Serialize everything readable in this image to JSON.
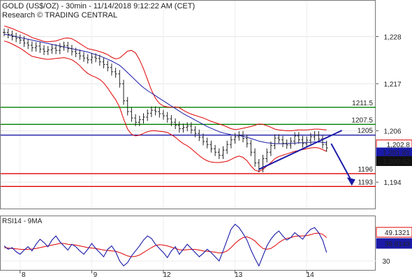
{
  "header": {
    "line1": "GOLD (US$/OZ) - 30min - 11/14/2018 9:12:22 AM (CET)",
    "line2": "Research © TRADING CENTRAL"
  },
  "colors": {
    "price": "#222222",
    "bollinger": "#e00000",
    "ma": "#1a1aa8",
    "support": "#e00000",
    "resistance": "#008000",
    "pivot": "#1a1aa8",
    "arrow": "#1a1aa8"
  },
  "chart_data": [
    {
      "type": "line",
      "title": "",
      "x_ticks": [
        "8",
        "9",
        "12",
        "13",
        "14"
      ],
      "y_ticks": [
        "1,228",
        "1,217",
        "1,206",
        "1,194"
      ],
      "ylim": [
        1188,
        1232
      ],
      "levels": [
        {
          "value": 1211.5,
          "label": "1211.5",
          "kind": "resistance"
        },
        {
          "value": 1207.5,
          "label": "1207.5",
          "kind": "resistance"
        },
        {
          "value": 1205,
          "label": "1205",
          "kind": "pivot"
        },
        {
          "value": 1196,
          "label": "1196",
          "kind": "support"
        },
        {
          "value": 1193,
          "label": "1193",
          "kind": "support"
        }
      ],
      "price_tags": [
        "1,202.8",
        "1,201.81",
        "1,200.62"
      ],
      "close": [
        1229.0,
        1228.5,
        1228.0,
        1227.6,
        1227.2,
        1226.5,
        1226.0,
        1225.4,
        1225.8,
        1225.1,
        1224.6,
        1224.9,
        1225.3,
        1224.8,
        1225.6,
        1225.9,
        1225.2,
        1224.5,
        1224.1,
        1223.5,
        1223.0,
        1222.6,
        1223.2,
        1222.9,
        1222.1,
        1221.5,
        1220.8,
        1219.8,
        1219.3,
        1217.0,
        1213.0,
        1210.5,
        1209.0,
        1208.0,
        1208.6,
        1209.2,
        1210.1,
        1210.8,
        1210.5,
        1210.0,
        1209.5,
        1208.8,
        1208.0,
        1207.3,
        1206.5,
        1206.8,
        1207.1,
        1206.2,
        1205.4,
        1204.5,
        1203.5,
        1202.8,
        1201.8,
        1201.0,
        1200.3,
        1201.5,
        1202.8,
        1203.9,
        1204.6,
        1205.0,
        1204.2,
        1203.0,
        1201.0,
        1198.5,
        1197.2,
        1199.5,
        1201.0,
        1202.6,
        1204.3,
        1203.9,
        1203.1,
        1202.7,
        1203.6,
        1204.8,
        1203.9,
        1203.0,
        1203.8,
        1204.6,
        1205.0,
        1204.1,
        1202.8,
        1202.0
      ],
      "bollinger_upper": [
        1230.5,
        1230.2,
        1229.9,
        1229.5,
        1229.1,
        1228.7,
        1228.3,
        1227.8,
        1227.5,
        1227.2,
        1226.9,
        1226.8,
        1226.9,
        1227.0,
        1227.3,
        1227.6,
        1227.7,
        1227.5,
        1227.0,
        1226.4,
        1225.8,
        1225.2,
        1225.0,
        1224.8,
        1224.5,
        1224.2,
        1223.8,
        1223.2,
        1222.8,
        1223.0,
        1223.8,
        1224.6,
        1224.8,
        1224.2,
        1222.6,
        1220.5,
        1218.0,
        1215.5,
        1213.6,
        1212.4,
        1211.8,
        1211.6,
        1211.5,
        1211.6,
        1211.4,
        1210.8,
        1210.3,
        1209.9,
        1209.6,
        1209.3,
        1209.0,
        1208.6,
        1208.2,
        1207.9,
        1207.6,
        1207.3,
        1206.9,
        1206.5,
        1206.3,
        1206.4,
        1206.6,
        1206.8,
        1207.0,
        1207.3,
        1207.6,
        1207.5,
        1207.2,
        1206.8,
        1206.4,
        1206.2,
        1206.1,
        1206.0,
        1206.0,
        1206.1,
        1206.2,
        1206.2,
        1206.2,
        1206.3,
        1206.4,
        1206.4,
        1206.3,
        1206.2
      ],
      "bollinger_lower": [
        1227.0,
        1226.7,
        1226.3,
        1225.8,
        1225.3,
        1224.7,
        1224.0,
        1223.4,
        1223.2,
        1223.0,
        1222.8,
        1222.7,
        1222.8,
        1222.9,
        1223.0,
        1223.1,
        1222.9,
        1222.6,
        1222.0,
        1221.2,
        1220.2,
        1219.4,
        1218.9,
        1218.5,
        1218.0,
        1217.2,
        1216.0,
        1214.6,
        1213.3,
        1211.5,
        1208.8,
        1206.4,
        1205.2,
        1204.8,
        1205.0,
        1205.4,
        1205.8,
        1206.0,
        1206.0,
        1205.9,
        1205.8,
        1205.6,
        1205.1,
        1204.5,
        1203.7,
        1203.0,
        1202.5,
        1201.8,
        1201.0,
        1200.2,
        1199.5,
        1199.0,
        1198.7,
        1198.6,
        1198.6,
        1198.7,
        1198.9,
        1199.3,
        1199.8,
        1200.1,
        1199.8,
        1199.0,
        1197.8,
        1196.8,
        1196.5,
        1197.0,
        1197.8,
        1198.6,
        1199.5,
        1200.0,
        1200.3,
        1200.6,
        1200.9,
        1201.2,
        1201.4,
        1201.6,
        1201.8,
        1202.0,
        1202.1,
        1202.0,
        1201.6,
        1201.2
      ],
      "ma": [
        1228.6,
        1228.4,
        1228.2,
        1228.0,
        1227.8,
        1227.6,
        1227.4,
        1227.2,
        1227.0,
        1226.8,
        1226.6,
        1226.4,
        1226.2,
        1226.0,
        1225.8,
        1225.6,
        1225.4,
        1225.2,
        1225.0,
        1224.8,
        1224.6,
        1224.4,
        1224.1,
        1223.8,
        1223.5,
        1223.1,
        1222.7,
        1222.3,
        1221.8,
        1221.3,
        1220.5,
        1219.6,
        1218.7,
        1217.8,
        1216.9,
        1216.1,
        1215.4,
        1214.8,
        1214.2,
        1213.6,
        1213.0,
        1212.4,
        1211.8,
        1211.2,
        1210.6,
        1210.0,
        1209.5,
        1209.0,
        1208.5,
        1208.0,
        1207.5,
        1207.0,
        1206.6,
        1206.2,
        1205.8,
        1205.5,
        1205.3,
        1205.1,
        1205.0,
        1204.9,
        1204.7,
        1204.5,
        1204.2,
        1203.9,
        1203.6,
        1203.4,
        1203.2,
        1203.1,
        1203.0,
        1203.0,
        1203.0,
        1203.0,
        1203.1,
        1203.1,
        1203.2,
        1203.2,
        1203.3,
        1203.3,
        1203.4,
        1203.4,
        1203.3,
        1203.2
      ],
      "trendline": {
        "from": {
          "i": 64,
          "v": 1197.0
        },
        "to": {
          "i": 81,
          "v": 1205.6
        }
      },
      "forecast": {
        "from": {
          "i": 79,
          "v": 1203.0
        },
        "to": {
          "i": 84,
          "v": 1193.5
        }
      }
    },
    {
      "type": "line",
      "title": "RSI14 - 9MA",
      "y_ticks": [
        "30"
      ],
      "ylim": [
        20,
        82
      ],
      "value_tags": [
        "49.1321",
        "39.8143"
      ],
      "rsi": [
        48,
        44,
        46,
        41,
        38,
        43,
        47,
        42,
        50,
        56,
        52,
        47,
        55,
        60,
        53,
        48,
        43,
        50,
        47,
        42,
        38,
        44,
        51,
        45,
        40,
        35,
        44,
        48,
        41,
        30,
        24,
        28,
        36,
        42,
        48,
        55,
        60,
        57,
        50,
        45,
        40,
        34,
        42,
        47,
        38,
        44,
        50,
        45,
        40,
        35,
        39,
        44,
        40,
        35,
        30,
        42,
        55,
        68,
        74,
        70,
        63,
        55,
        43,
        33,
        24,
        36,
        48,
        56,
        62,
        66,
        60,
        55,
        58,
        64,
        60,
        56,
        63,
        68,
        70,
        64,
        55,
        40
      ],
      "ma": [
        46,
        45.5,
        45,
        44.5,
        44,
        43.8,
        44,
        44.3,
        45,
        46,
        47,
        48,
        49,
        50,
        51,
        51,
        50,
        49.5,
        49,
        48,
        47,
        46,
        45.5,
        45,
        44,
        43,
        42.5,
        42,
        41.5,
        40,
        38,
        36,
        35,
        35.5,
        37,
        40,
        43,
        46,
        48.5,
        49.5,
        49,
        48,
        46.5,
        45,
        43.5,
        43,
        43.5,
        44,
        43.8,
        43,
        42,
        41.5,
        41,
        40.5,
        39.5,
        40,
        42,
        46,
        51,
        55,
        58,
        59,
        57,
        54,
        49,
        45,
        44,
        45,
        48,
        52,
        55,
        57,
        58,
        59.5,
        60,
        60,
        60.5,
        61.5,
        63,
        63.5,
        62,
        58
      ]
    }
  ]
}
